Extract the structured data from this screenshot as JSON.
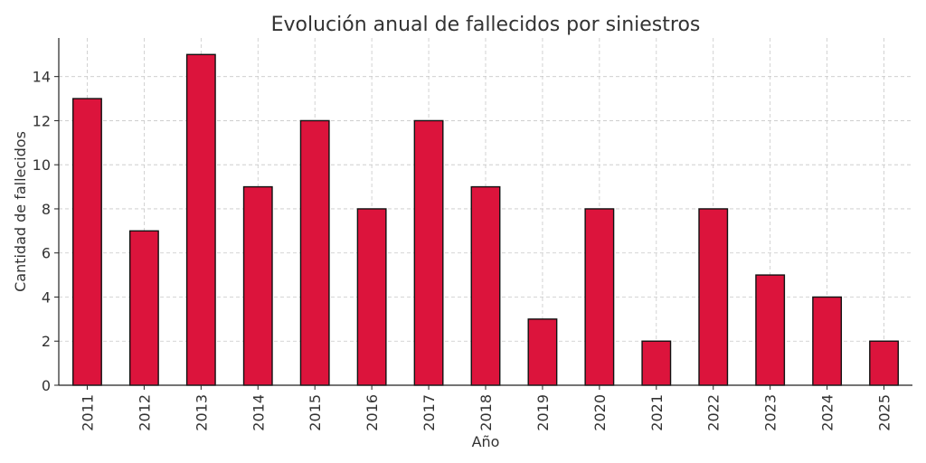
{
  "chart_data": {
    "type": "bar",
    "title": "Evolución anual de fallecidos por siniestros",
    "xlabel": "Año",
    "ylabel": "Cantidad de fallecidos",
    "categories": [
      "2011",
      "2012",
      "2013",
      "2014",
      "2015",
      "2016",
      "2017",
      "2018",
      "2019",
      "2020",
      "2021",
      "2022",
      "2023",
      "2024",
      "2025"
    ],
    "values": [
      13,
      7,
      15,
      9,
      12,
      8,
      12,
      9,
      3,
      8,
      2,
      8,
      5,
      4,
      2
    ],
    "ylim": [
      0,
      15.75
    ],
    "yticks": [
      0,
      2,
      4,
      6,
      8,
      10,
      12,
      14
    ],
    "grid": true,
    "bar_color": "#dc143c",
    "edge_color": "#111111"
  }
}
